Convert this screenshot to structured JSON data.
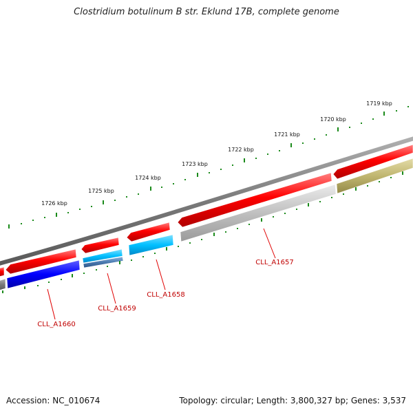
{
  "title": "Clostridium botulinum B str. Eklund 17B, complete genome",
  "footer": {
    "accession": "Accession: NC_010674",
    "summary": "Topology: circular; Length: 3,800,327 bp; Genes: 3,537"
  },
  "ruler_labels": [
    "1719 kbp",
    "1720 kbp",
    "1721 kbp",
    "1722 kbp",
    "1723 kbp",
    "1724 kbp",
    "1725 kbp",
    "1726 kbp"
  ],
  "gene_labels": [
    "CLL_A1657",
    "CLL_A1658",
    "CLL_A1659",
    "CLL_A1660"
  ],
  "colors": {
    "backbone": "#808080",
    "cds": "#ff0000",
    "gene_a1657": "#c0c0c0",
    "gene_a1658": "#00bfff",
    "gene_a1659": "#4a7ab0",
    "gene_a1660": "#0000ff",
    "gene_olive": "#c8c080",
    "ticks": "#1a8a1a",
    "label": "#c00000"
  }
}
